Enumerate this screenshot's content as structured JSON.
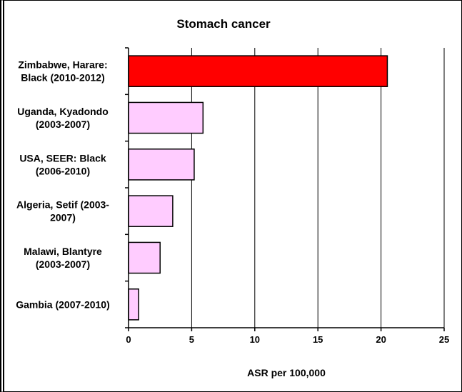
{
  "chart_data": {
    "type": "bar",
    "orientation": "horizontal",
    "title": "Stomach cancer",
    "xlabel": "ASR per 100,000",
    "ylabel": "",
    "categories": [
      [
        "Zimbabwe, Harare:",
        "Black (2010-2012)"
      ],
      [
        "Uganda, Kyadondo",
        "(2003-2007)"
      ],
      [
        "USA, SEER: Black",
        "(2006-2010)"
      ],
      [
        "Algeria, Setif (2003-",
        "2007)"
      ],
      [
        "Malawi, Blantyre",
        "(2003-2007)"
      ],
      [
        "Gambia (2007-2010)"
      ]
    ],
    "values": [
      20.5,
      5.9,
      5.2,
      3.5,
      2.5,
      0.8
    ],
    "bar_colors": [
      "#ff0000",
      "#ffccff",
      "#ffccff",
      "#ffccff",
      "#ffccff",
      "#ffccff"
    ],
    "xlim": [
      0,
      25
    ],
    "xticks": [
      0,
      5,
      10,
      15,
      20,
      25
    ],
    "grid": "vertical"
  }
}
